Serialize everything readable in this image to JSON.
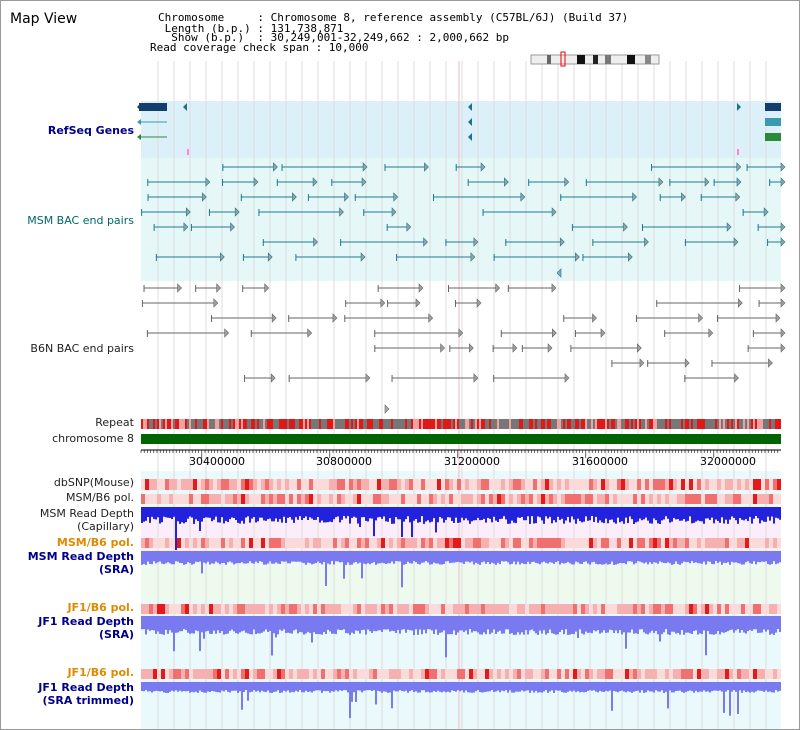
{
  "header": {
    "title": "Map View",
    "info_lines": [
      "Chromosome     : Chromosome 8, reference assembly (C57BL/6J) (Build 37)",
      " Length (b.p.) : 131,738,871",
      "  Show (b.p.)  : 30,249,001-32,249,662 : 2,000,662 bp",
      "Read coverage check span : 10,000"
    ]
  },
  "tracks": {
    "refseq": "RefSeq Genes",
    "msm_bac": "MSM BAC end pairs",
    "b6n_bac": "B6N BAC end pairs",
    "repeat": "Repeat",
    "chromosome": "chromosome 8",
    "dbsnp": "dbSNP(Mouse)",
    "msm_b6_pol_1": "MSM/B6 pol.",
    "msm_read_cap_1": "MSM Read Depth",
    "msm_read_cap_2": "(Capillary)",
    "msm_b6_pol_2": "MSM/B6 pol.",
    "msm_read_sra_1": "MSM Read Depth",
    "msm_read_sra_2": "(SRA)",
    "jf1_pol_1": "JF1/B6 pol.",
    "jf1_read_sra_1": "JF1 Read Depth",
    "jf1_read_sra_2": "(SRA)",
    "jf1_pol_2": "JF1/B6 pol.",
    "jf1_read_trim_1": "JF1 Read Depth",
    "jf1_read_trim_2": "(SRA trimmed)"
  },
  "axis": {
    "ticks": [
      "30400000",
      "30800000",
      "31200000",
      "31600000",
      "32000000"
    ]
  },
  "colors": {
    "refseq_bg": "#dcf0fa",
    "msm_bg": "#e5f7f7",
    "msm_feature": "#1f7b8f",
    "b6n_feature": "#666666",
    "chromosome": "#006400",
    "depth_blue": "#2222dd",
    "depth_light": "#7a7af0",
    "pol_red": "#e84848"
  }
}
